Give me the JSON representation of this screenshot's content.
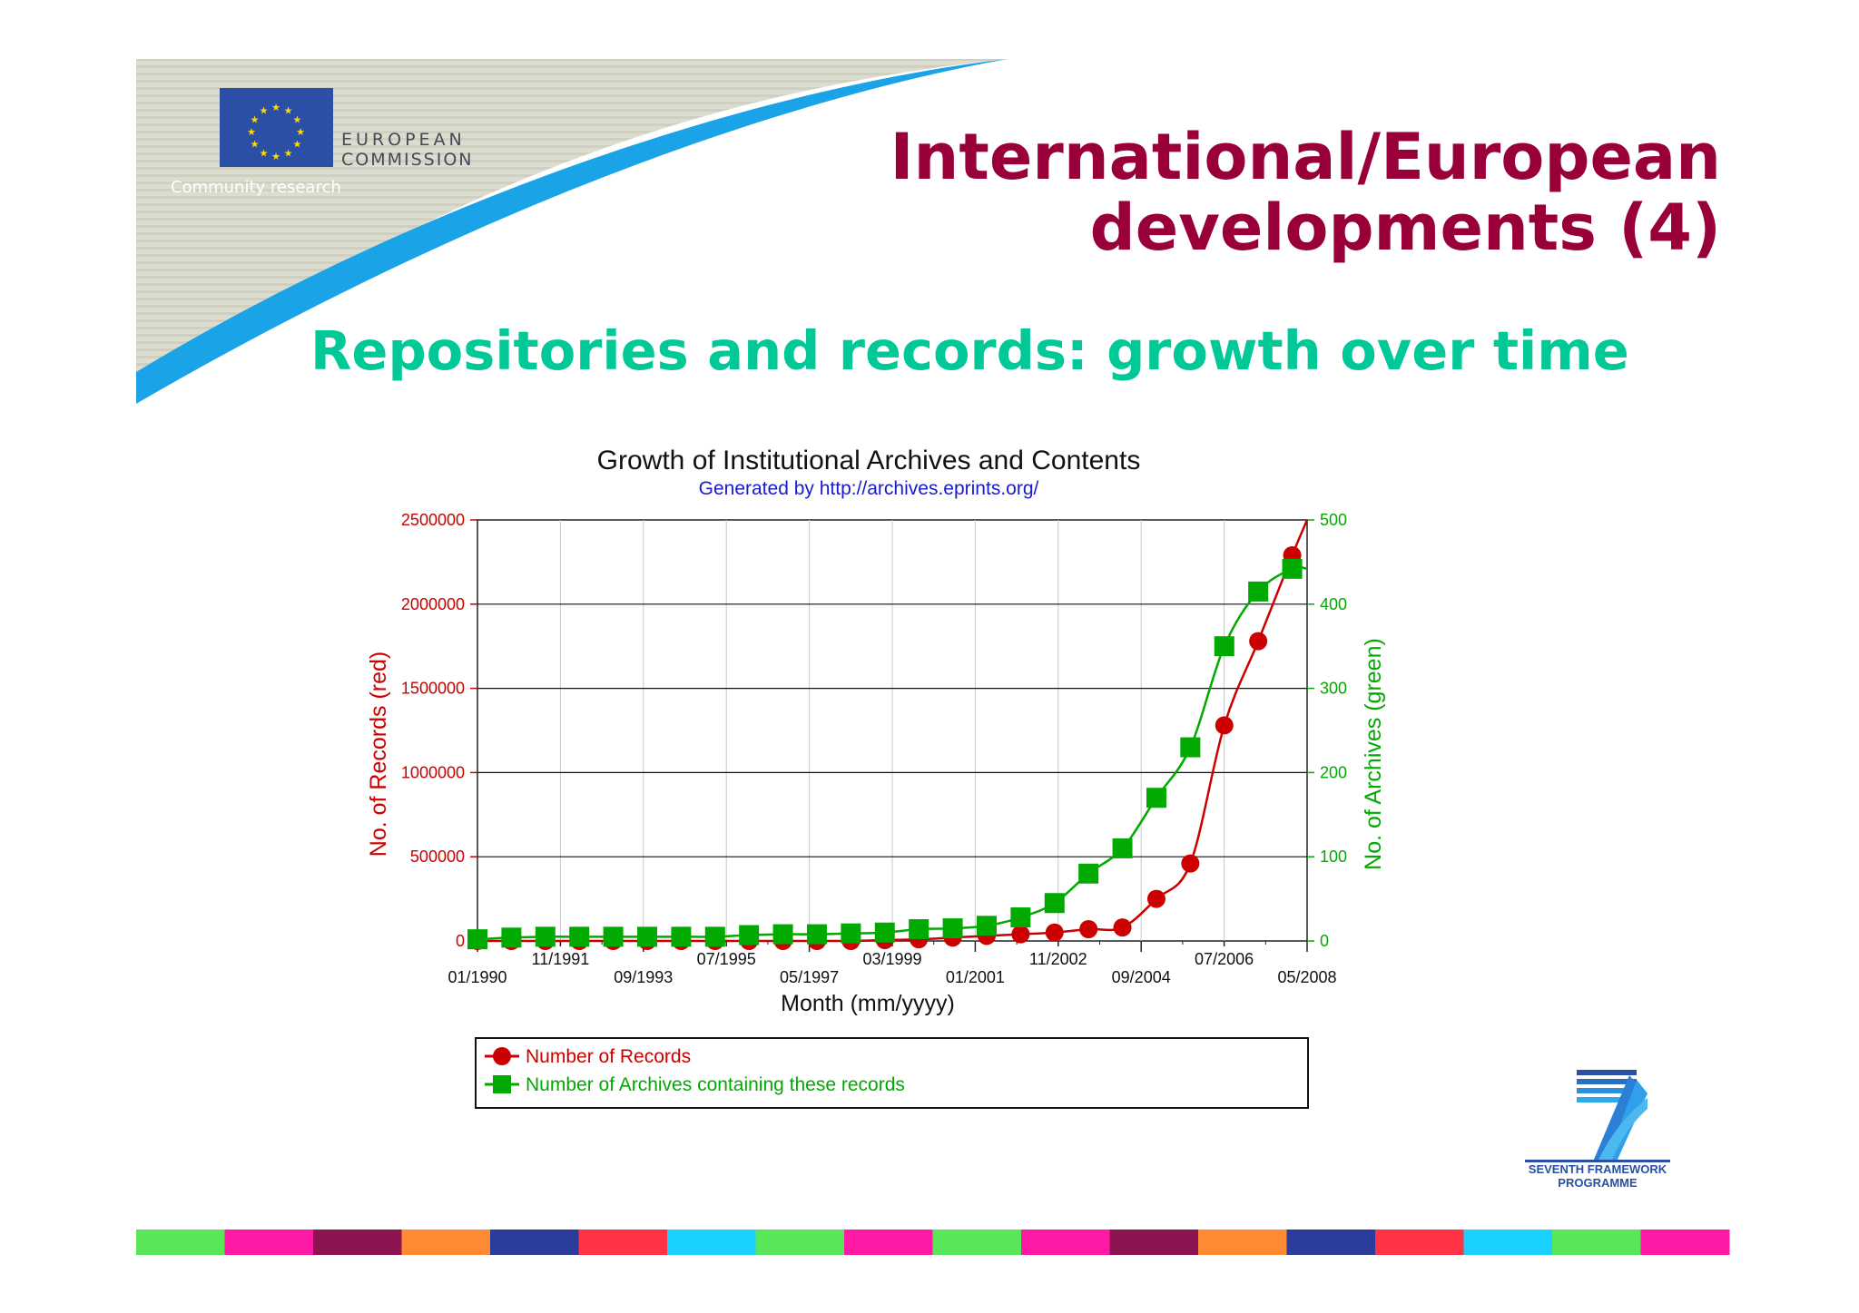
{
  "slide": {
    "title_line1": "International/European",
    "title_line2": "developments (4)",
    "subtitle": "Repositories and records: growth over time",
    "logo_ec": {
      "line1": "EUROPEAN",
      "line2": "COMMISSION",
      "tagline": "Community research"
    },
    "logo_fp7": {
      "line1": "SEVENTH FRAMEWORK",
      "line2": "PROGRAMME"
    },
    "colors": {
      "title": "#99003a",
      "subtitle": "#00c896",
      "eu_blue": "#2b4fa4",
      "wave": "#1aa3e6"
    }
  },
  "chart_data": {
    "type": "line",
    "title": "Growth of Institutional Archives and Contents",
    "subtitle": "Generated by http://archives.eprints.org/",
    "xlabel": "Month (mm/yyyy)",
    "ylabel_left": "No. of Records (red)",
    "ylabel_right": "No. of Archives (green)",
    "x_ticks_upper": [
      "11/1991",
      "07/1995",
      "03/1999",
      "11/2002",
      "07/2006"
    ],
    "x_ticks_lower": [
      "01/1990",
      "09/1993",
      "05/1997",
      "01/2001",
      "09/2004",
      "05/2008"
    ],
    "y_left_ticks": [
      "0",
      "500000",
      "1000000",
      "1500000",
      "2000000",
      "2500000"
    ],
    "y_right_ticks": [
      "0",
      "100",
      "200",
      "300",
      "400",
      "500"
    ],
    "ylim_left": [
      0,
      2500000
    ],
    "ylim_right": [
      0,
      500
    ],
    "xlim": [
      1990.0,
      2008.33
    ],
    "grid": true,
    "legend_position": "bottom",
    "series": [
      {
        "name": "Number of Records",
        "axis": "left",
        "color": "#cc0000",
        "marker": "circle",
        "x": [
          1990.0,
          1990.75,
          1991.5,
          1992.25,
          1993.0,
          1993.75,
          1994.5,
          1995.25,
          1996.0,
          1996.75,
          1997.5,
          1998.25,
          1999.0,
          1999.75,
          2000.5,
          2001.25,
          2002.0,
          2002.75,
          2003.5,
          2004.25,
          2005.0,
          2005.75,
          2006.5,
          2007.25,
          2008.0
        ],
        "values": [
          0,
          0,
          0,
          0,
          0,
          0,
          0,
          0,
          0,
          0,
          0,
          0,
          5000,
          10000,
          20000,
          30000,
          40000,
          50000,
          70000,
          80000,
          250000,
          460000,
          1280000,
          1780000,
          2290000
        ]
      },
      {
        "name": "Number of Archives containing these records",
        "axis": "right",
        "color": "#00aa00",
        "marker": "square",
        "x": [
          1990.0,
          1990.75,
          1991.5,
          1992.25,
          1993.0,
          1993.75,
          1994.5,
          1995.25,
          1996.0,
          1996.75,
          1997.5,
          1998.25,
          1999.0,
          1999.75,
          2000.5,
          2001.25,
          2002.0,
          2002.75,
          2003.5,
          2004.25,
          2005.0,
          2005.75,
          2006.5,
          2007.25,
          2008.0
        ],
        "values": [
          2,
          4,
          5,
          5,
          5,
          5,
          5,
          5,
          7,
          8,
          8,
          9,
          10,
          14,
          15,
          18,
          28,
          45,
          80,
          110,
          170,
          230,
          350,
          415,
          442
        ]
      }
    ]
  }
}
